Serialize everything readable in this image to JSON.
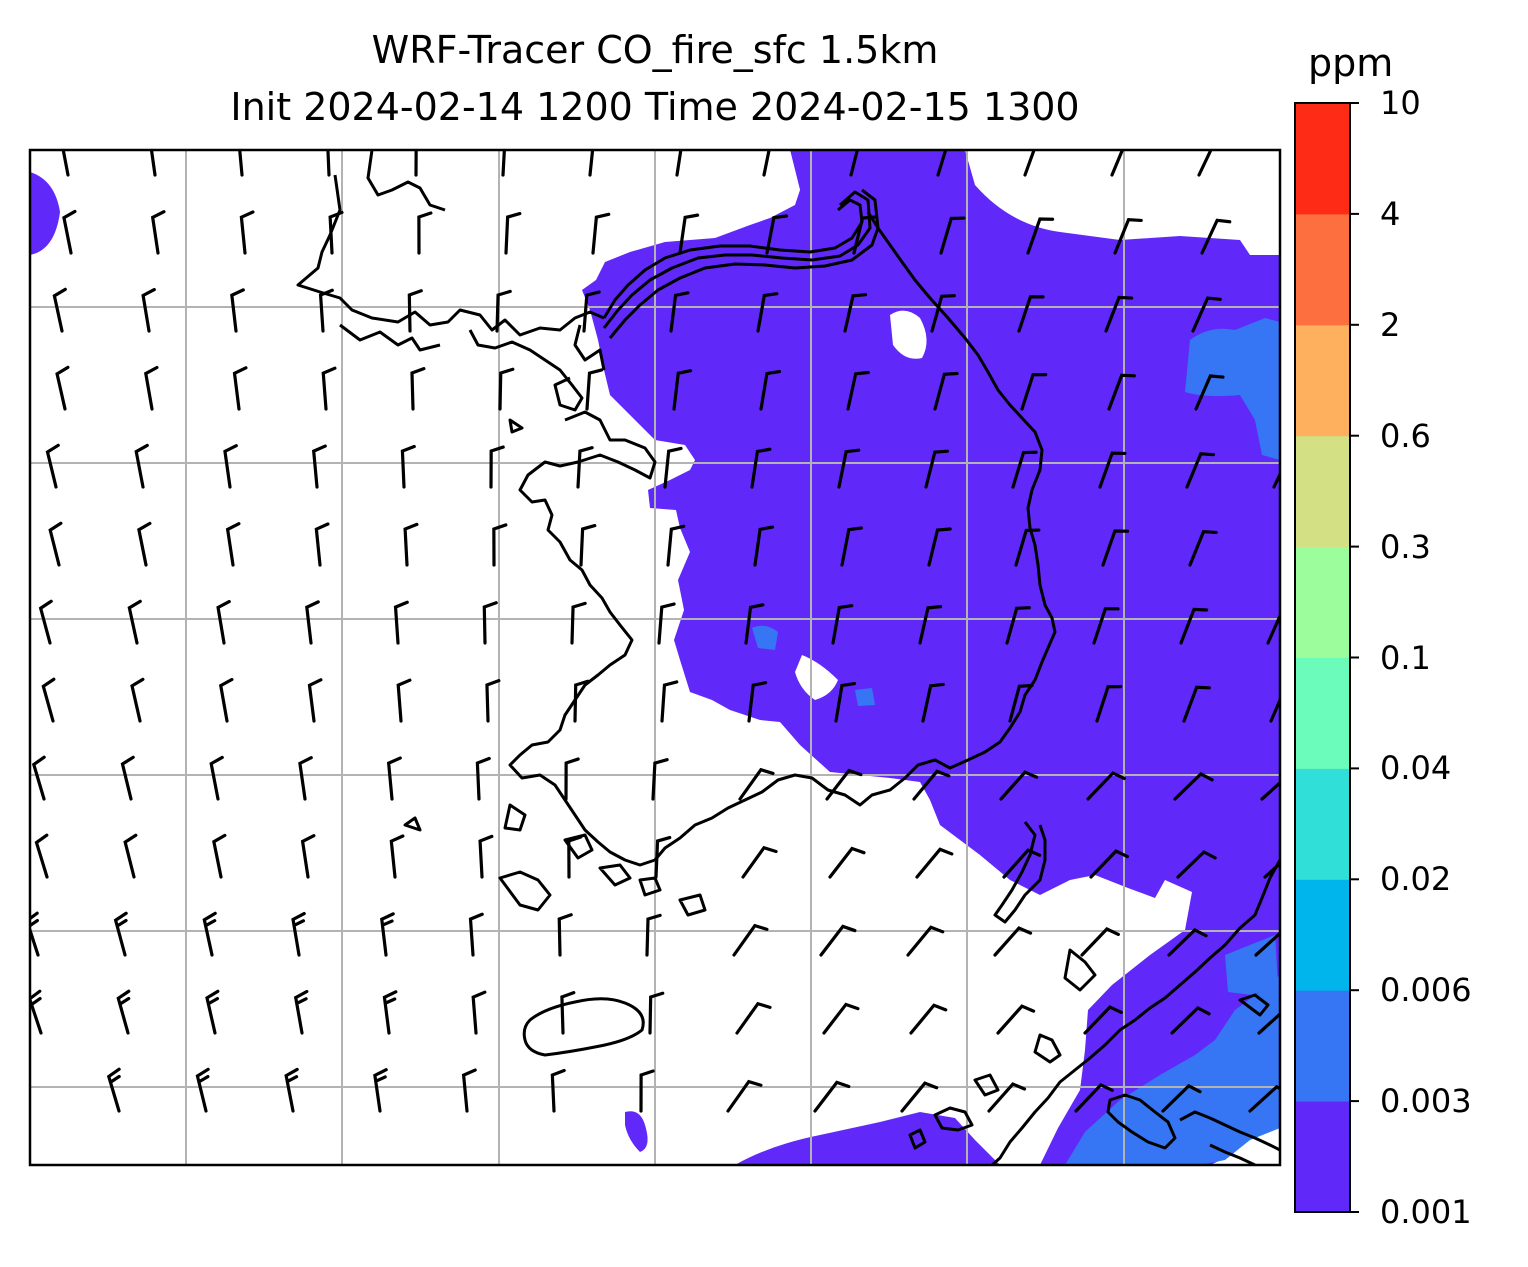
{
  "title": {
    "line1": "WRF-Tracer CO_fire_sfc 1.5km",
    "line2": "Init 2024-02-14 1200 Time 2024-02-15 1300"
  },
  "colorbar": {
    "unit": "ppm",
    "levels": [
      "0.001",
      "0.003",
      "0.006",
      "0.02",
      "0.04",
      "0.1",
      "0.3",
      "0.6",
      "2",
      "4",
      "10"
    ],
    "colors": [
      "#6029f9",
      "#3676f4",
      "#00b4ec",
      "#2fdfd8",
      "#6bfbba",
      "#9cfd9d",
      "#d3e184",
      "#feb05f",
      "#fe6f3f",
      "#fe2b17"
    ]
  },
  "map": {
    "fill_color": "#6029f9",
    "secondary_fill_color": "#3676f4",
    "gridline_color": "#b3b3b3",
    "coastline_color": "#000000",
    "wind_barb_color": "#000000"
  }
}
